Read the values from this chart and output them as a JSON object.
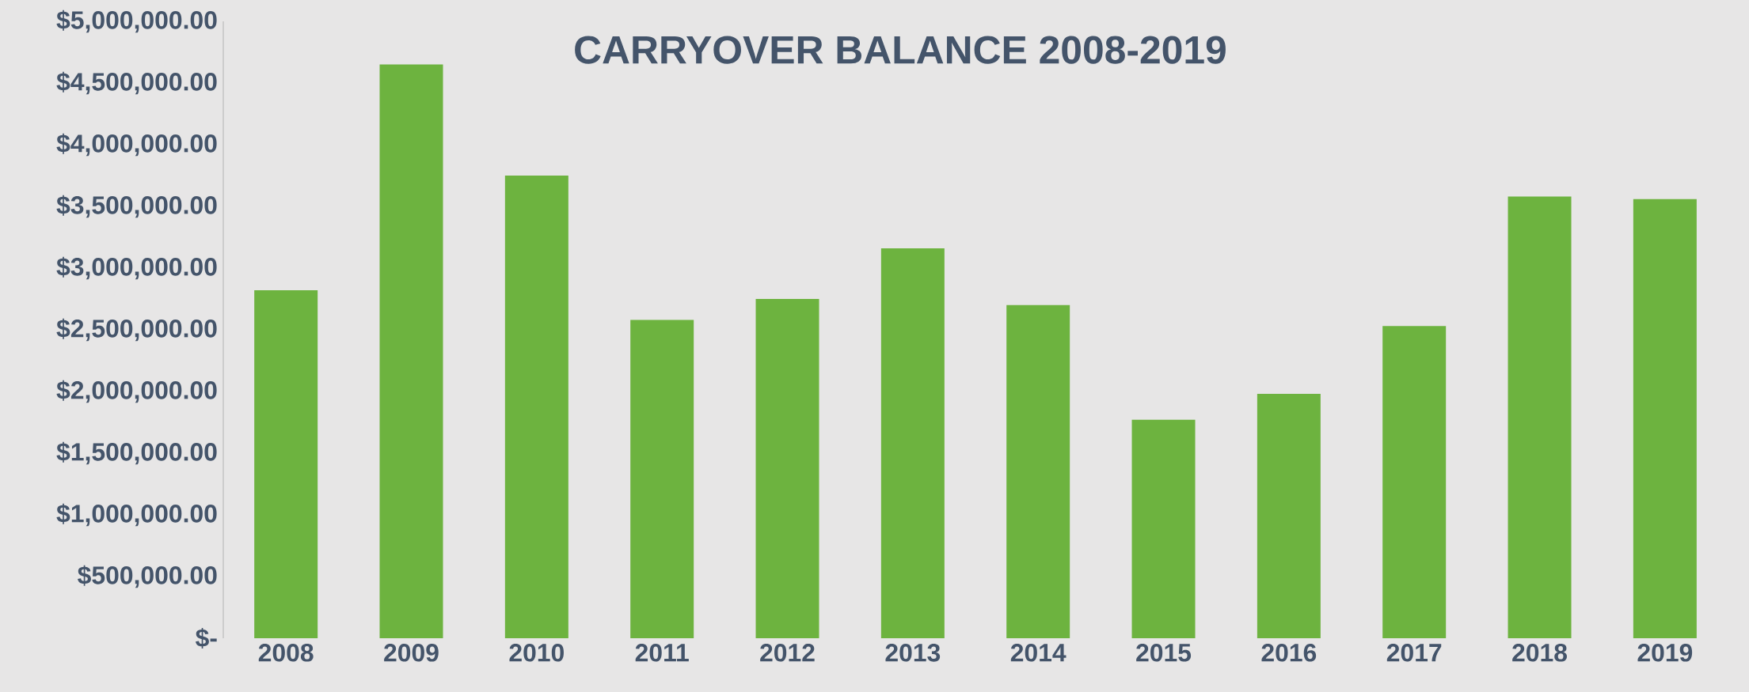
{
  "chart_data": {
    "type": "bar",
    "title": "CARRYOVER BALANCE   2008-2019",
    "categories": [
      "2008",
      "2009",
      "2010",
      "2011",
      "2012",
      "2013",
      "2014",
      "2015",
      "2016",
      "2017",
      "2018",
      "2019"
    ],
    "values": [
      2820000,
      4650000,
      3750000,
      2580000,
      2750000,
      3160000,
      2700000,
      1770000,
      1980000,
      2530000,
      3580000,
      3560000
    ],
    "color": "#6db33f",
    "ylim": [
      0,
      5000000
    ],
    "yticks": [
      {
        "value": 0,
        "label": "$-"
      },
      {
        "value": 500000,
        "label": "$500,000.00"
      },
      {
        "value": 1000000,
        "label": "$1,000,000.00"
      },
      {
        "value": 1500000,
        "label": "$1,500,000.00"
      },
      {
        "value": 2000000,
        "label": "$2,000,000.00"
      },
      {
        "value": 2500000,
        "label": "$2,500,000.00"
      },
      {
        "value": 3000000,
        "label": "$3,000,000.00"
      },
      {
        "value": 3500000,
        "label": "$3,500,000.00"
      },
      {
        "value": 4000000,
        "label": "$4,000,000.00"
      },
      {
        "value": 4500000,
        "label": "$4,500,000.00"
      },
      {
        "value": 5000000,
        "label": "$5,000,000.00"
      }
    ],
    "grid": false
  }
}
